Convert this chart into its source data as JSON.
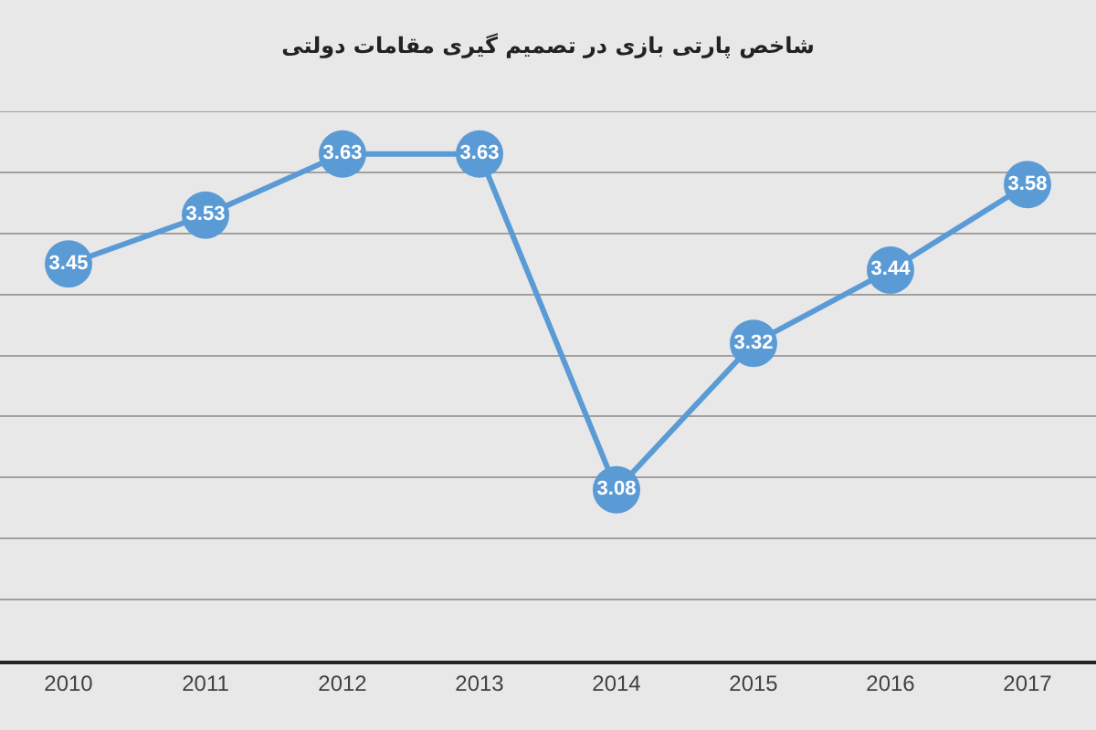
{
  "chart_data": {
    "type": "line",
    "title": "شاخص پارتی بازی در تصمیم گیری مقامات دولتی",
    "categories": [
      "2010",
      "2011",
      "2012",
      "2013",
      "2014",
      "2015",
      "2016",
      "2017"
    ],
    "values": [
      3.45,
      3.53,
      3.63,
      3.63,
      3.08,
      3.32,
      3.44,
      3.58
    ],
    "color": "#5b9bd5",
    "data_labels": true,
    "marker": "circle",
    "line_style": "solid",
    "grid": "y",
    "ylim": [
      2.8,
      3.7
    ],
    "yticks": [
      {
        "value": 2.8,
        "label": null
      },
      {
        "value": 2.9,
        "label": null
      },
      {
        "value": 3.0,
        "label": null
      },
      {
        "value": 3.1,
        "label": null
      },
      {
        "value": 3.2,
        "label": null
      },
      {
        "value": 3.3,
        "label": null
      },
      {
        "value": 3.4,
        "label": null
      },
      {
        "value": 3.5,
        "label": null
      },
      {
        "value": 3.6,
        "label": null
      },
      {
        "value": 3.7,
        "label": null
      }
    ],
    "tick_labels": "x"
  }
}
